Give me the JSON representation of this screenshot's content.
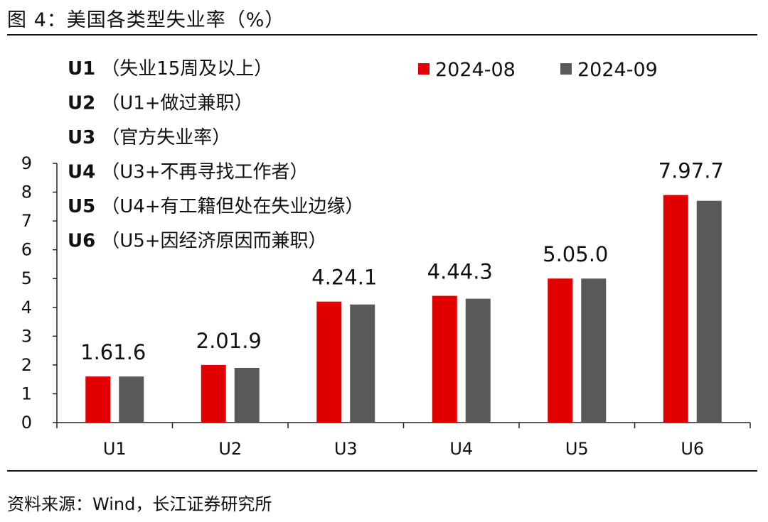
{
  "header": {
    "title": "图 4：美国各类型失业率（%）"
  },
  "footer": {
    "source": "资料来源：Wind，长江证券研究所"
  },
  "colors": {
    "series1": "#e00000",
    "series2": "#595959",
    "axis": "#222222"
  },
  "annotations": [
    {
      "code": "U1",
      "desc": "（失业15周及以上）"
    },
    {
      "code": "U2",
      "desc": "（U1+做过兼职）"
    },
    {
      "code": "U3",
      "desc": "（官方失业率）"
    },
    {
      "code": "U4",
      "desc": "（U3+不再寻找工作者）"
    },
    {
      "code": "U5",
      "desc": "（U4+有工籍但处在失业边缘）"
    },
    {
      "code": "U6",
      "desc": "（U5+因经济原因而兼职）"
    }
  ],
  "chart_data": {
    "type": "bar",
    "title": "美国各类型失业率（%）",
    "categories": [
      "U1",
      "U2",
      "U3",
      "U4",
      "U5",
      "U6"
    ],
    "series": [
      {
        "name": "2024-08",
        "values": [
          1.6,
          2.0,
          4.2,
          4.4,
          5.0,
          7.9
        ],
        "labels": [
          "1.6",
          "2.0",
          "4.2",
          "4.4",
          "5.0",
          "7.9"
        ]
      },
      {
        "name": "2024-09",
        "values": [
          1.6,
          1.9,
          4.1,
          4.3,
          5.0,
          7.7
        ],
        "labels": [
          "1.6",
          "1.9",
          "4.1",
          "4.3",
          "5.0",
          "7.7"
        ]
      }
    ],
    "ylim": [
      0,
      9
    ],
    "yticks": [
      "0",
      "1",
      "2",
      "3",
      "4",
      "5",
      "6",
      "7",
      "8",
      "9"
    ],
    "xlabel": "",
    "ylabel": "",
    "legend_position": "top-right"
  }
}
